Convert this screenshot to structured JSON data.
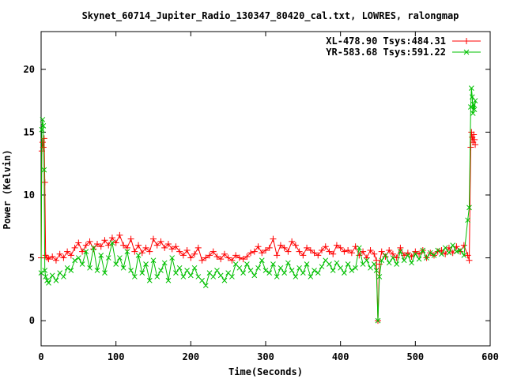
{
  "chart_data": {
    "type": "line",
    "title": "Skynet_60714_Jupiter_Radio_130347_80420_cal.txt, LOWRES, ralongmap",
    "xlabel": "Time(Seconds)",
    "ylabel": "Power (Kelvin)",
    "xlim": [
      0,
      600
    ],
    "ylim": [
      -2,
      23
    ],
    "xticks": [
      0,
      100,
      200,
      300,
      400,
      500,
      600
    ],
    "xtick_labels": [
      "0",
      "100",
      "200",
      "300",
      "400",
      "500",
      "600"
    ],
    "yticks": [
      0,
      5,
      10,
      15,
      20
    ],
    "ytick_labels": [
      "0",
      "5",
      "10",
      "15",
      "20"
    ],
    "grid": false,
    "legend_position": "top-right",
    "series": [
      {
        "name": "XL-478.90 Tsys:484.31",
        "color": "#ff0000",
        "marker": "plus",
        "x": [
          0,
          1,
          2,
          3,
          4,
          5,
          6,
          8,
          10,
          15,
          20,
          25,
          30,
          35,
          40,
          45,
          50,
          55,
          60,
          65,
          70,
          75,
          80,
          85,
          90,
          95,
          100,
          105,
          110,
          115,
          120,
          125,
          130,
          135,
          140,
          145,
          150,
          155,
          160,
          165,
          170,
          175,
          180,
          185,
          190,
          195,
          200,
          205,
          210,
          215,
          220,
          225,
          230,
          235,
          240,
          245,
          250,
          255,
          260,
          265,
          270,
          275,
          280,
          285,
          290,
          295,
          300,
          305,
          310,
          315,
          320,
          325,
          330,
          335,
          340,
          345,
          350,
          355,
          360,
          365,
          370,
          375,
          380,
          385,
          390,
          395,
          400,
          405,
          410,
          415,
          420,
          425,
          430,
          435,
          440,
          445,
          448,
          450,
          452,
          455,
          460,
          465,
          470,
          475,
          480,
          485,
          490,
          495,
          500,
          505,
          510,
          515,
          520,
          525,
          530,
          535,
          540,
          545,
          550,
          555,
          560,
          565,
          570,
          572,
          574,
          575,
          576,
          577,
          578,
          579,
          580
        ],
        "y": [
          5.0,
          13.5,
          14.2,
          13.8,
          14.5,
          11.0,
          5.2,
          5.0,
          4.9,
          5.1,
          4.8,
          5.3,
          5.0,
          5.5,
          5.2,
          5.8,
          6.2,
          5.5,
          6.0,
          6.3,
          5.7,
          6.1,
          5.9,
          6.4,
          6.0,
          6.6,
          6.2,
          6.8,
          6.0,
          5.8,
          6.5,
          5.5,
          6.0,
          5.4,
          5.8,
          5.5,
          6.5,
          6.0,
          6.3,
          5.8,
          6.1,
          5.7,
          5.9,
          5.5,
          5.2,
          5.6,
          5.0,
          5.3,
          5.8,
          4.8,
          5.0,
          5.2,
          5.5,
          5.1,
          4.9,
          5.3,
          5.0,
          4.8,
          5.2,
          5.0,
          4.9,
          5.1,
          5.4,
          5.5,
          5.9,
          5.4,
          5.6,
          5.8,
          6.5,
          5.2,
          6.0,
          5.8,
          5.5,
          6.3,
          6.0,
          5.5,
          5.2,
          5.8,
          5.6,
          5.4,
          5.2,
          5.6,
          5.9,
          5.5,
          5.3,
          6.0,
          5.8,
          5.5,
          5.6,
          5.4,
          5.9,
          5.2,
          5.5,
          5.0,
          5.6,
          5.3,
          4.8,
          0.0,
          4.5,
          5.5,
          5.1,
          5.6,
          5.3,
          5.0,
          5.8,
          5.2,
          5.4,
          5.1,
          5.5,
          5.3,
          5.6,
          5.0,
          5.4,
          5.2,
          5.5,
          5.6,
          5.3,
          5.8,
          5.4,
          5.9,
          5.5,
          6.0,
          5.2,
          4.8,
          13.8,
          15.0,
          14.6,
          14.2,
          14.8,
          14.4,
          14.0
        ]
      },
      {
        "name": "YR-583.68 Tsys:591.22",
        "color": "#00c000",
        "marker": "x",
        "x": [
          0,
          1,
          2,
          3,
          4,
          5,
          6,
          8,
          10,
          15,
          20,
          25,
          30,
          35,
          40,
          45,
          50,
          55,
          60,
          65,
          70,
          75,
          80,
          85,
          90,
          95,
          100,
          105,
          110,
          115,
          120,
          125,
          130,
          135,
          140,
          145,
          150,
          155,
          160,
          165,
          170,
          175,
          180,
          185,
          190,
          195,
          200,
          205,
          210,
          215,
          220,
          225,
          230,
          235,
          240,
          245,
          250,
          255,
          260,
          265,
          270,
          275,
          280,
          285,
          290,
          295,
          300,
          305,
          310,
          315,
          320,
          325,
          330,
          335,
          340,
          345,
          350,
          355,
          360,
          365,
          370,
          375,
          380,
          385,
          390,
          395,
          400,
          405,
          410,
          415,
          420,
          425,
          430,
          435,
          440,
          445,
          448,
          450,
          452,
          455,
          460,
          465,
          470,
          475,
          480,
          485,
          490,
          495,
          500,
          505,
          510,
          515,
          520,
          525,
          530,
          535,
          540,
          545,
          550,
          555,
          560,
          565,
          570,
          572,
          574,
          575,
          576,
          577,
          578,
          579,
          580
        ],
        "y": [
          3.8,
          15.2,
          16.0,
          15.5,
          12.0,
          4.0,
          3.5,
          3.2,
          3.0,
          3.6,
          3.2,
          3.8,
          3.5,
          4.2,
          4.0,
          4.8,
          5.0,
          4.5,
          5.5,
          4.2,
          5.8,
          4.0,
          5.2,
          3.8,
          5.0,
          6.2,
          4.5,
          5.0,
          4.2,
          5.5,
          4.0,
          3.5,
          5.2,
          3.8,
          4.5,
          3.2,
          4.8,
          3.5,
          4.0,
          4.6,
          3.2,
          5.0,
          3.8,
          4.2,
          3.5,
          4.0,
          3.6,
          4.2,
          3.5,
          3.2,
          2.8,
          3.8,
          3.5,
          4.0,
          3.6,
          3.2,
          3.8,
          3.5,
          4.5,
          4.2,
          3.8,
          4.5,
          4.0,
          3.6,
          4.2,
          4.8,
          4.0,
          3.8,
          4.5,
          3.5,
          4.2,
          3.8,
          4.6,
          4.0,
          3.5,
          4.2,
          3.8,
          4.5,
          3.5,
          4.0,
          3.8,
          4.3,
          4.8,
          4.5,
          4.0,
          4.6,
          4.2,
          3.8,
          4.5,
          4.0,
          4.2,
          5.8,
          4.5,
          4.8,
          4.2,
          4.5,
          4.0,
          0.0,
          3.5,
          4.8,
          5.2,
          4.6,
          5.0,
          4.5,
          5.5,
          4.8,
          5.2,
          4.6,
          5.3,
          4.9,
          5.6,
          5.0,
          5.4,
          5.2,
          5.6,
          5.3,
          5.8,
          5.4,
          6.0,
          5.5,
          5.6,
          5.2,
          8.0,
          9.0,
          17.0,
          18.5,
          17.8,
          16.5,
          17.2,
          16.8,
          17.5
        ]
      }
    ]
  }
}
